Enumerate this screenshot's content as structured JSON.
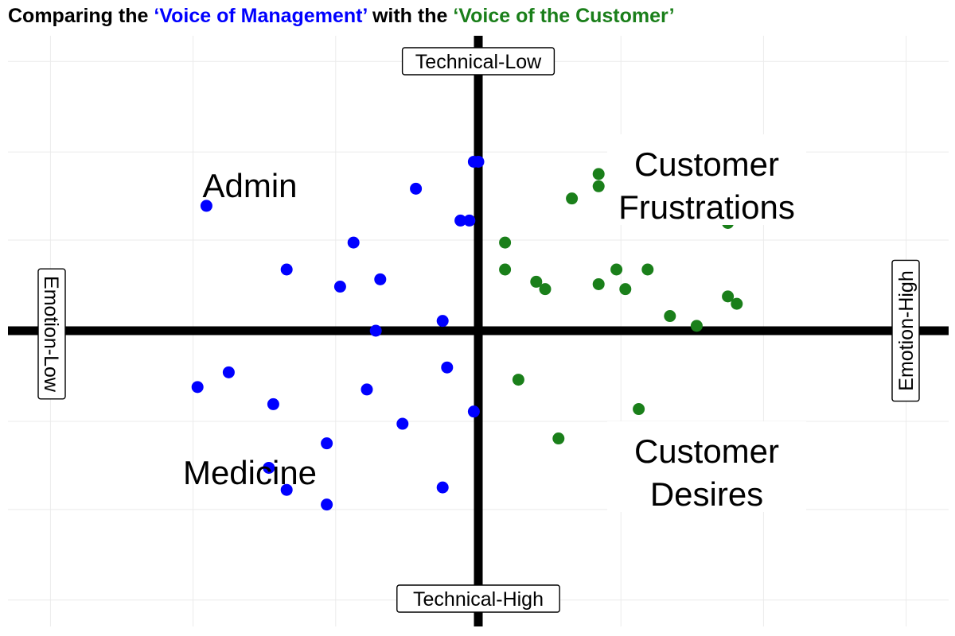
{
  "title": {
    "part1": "Comparing the ",
    "part2": "‘Voice of Management’",
    "part3": " with the ",
    "part4": "‘Voice of the Customer’"
  },
  "colors": {
    "management": "#0000ff",
    "customer": "#1a7f1a",
    "text": "#000000",
    "grid": "#ebebeb",
    "axis": "#000000"
  },
  "chart_data": {
    "type": "scatter",
    "xlim": [
      -1.05,
      1.05
    ],
    "ylim": [
      -1.1,
      1.1
    ],
    "grid": true,
    "axis_labels": {
      "top": "Technical-Low",
      "bottom": "Technical-High",
      "left": "Emotion-Low",
      "right": "Emotion-High"
    },
    "quadrant_labels": [
      {
        "id": "admin",
        "lines": [
          "Admin"
        ]
      },
      {
        "id": "medicine",
        "lines": [
          "Medicine"
        ]
      },
      {
        "id": "frustrations",
        "lines": [
          "Customer",
          "Frustrations"
        ]
      },
      {
        "id": "desires",
        "lines": [
          "Customer",
          "Desires"
        ]
      }
    ],
    "series": [
      {
        "key": "management",
        "color": "#0000ff",
        "points": [
          [
            -0.01,
            0.69
          ],
          [
            0.0,
            0.69
          ],
          [
            -0.14,
            0.58
          ],
          [
            -0.61,
            0.51
          ],
          [
            -0.04,
            0.45
          ],
          [
            -0.02,
            0.45
          ],
          [
            -0.28,
            0.36
          ],
          [
            -0.43,
            0.25
          ],
          [
            -0.22,
            0.21
          ],
          [
            -0.31,
            0.18
          ],
          [
            -0.08,
            0.04
          ],
          [
            -0.23,
            0.0
          ],
          [
            -0.07,
            -0.15
          ],
          [
            -0.56,
            -0.17
          ],
          [
            -0.63,
            -0.23
          ],
          [
            -0.25,
            -0.24
          ],
          [
            -0.46,
            -0.3
          ],
          [
            -0.01,
            -0.33
          ],
          [
            -0.17,
            -0.38
          ],
          [
            -0.34,
            -0.46
          ],
          [
            -0.47,
            -0.56
          ],
          [
            -0.43,
            -0.65
          ],
          [
            -0.08,
            -0.64
          ],
          [
            -0.34,
            -0.71
          ]
        ]
      },
      {
        "key": "customer",
        "color": "#1a7f1a",
        "points": [
          [
            0.27,
            0.64
          ],
          [
            0.27,
            0.59
          ],
          [
            0.55,
            0.61
          ],
          [
            0.21,
            0.54
          ],
          [
            0.43,
            0.54
          ],
          [
            0.61,
            0.53
          ],
          [
            0.33,
            0.46
          ],
          [
            0.56,
            0.44
          ],
          [
            0.06,
            0.36
          ],
          [
            0.06,
            0.25
          ],
          [
            0.13,
            0.2
          ],
          [
            0.15,
            0.17
          ],
          [
            0.27,
            0.19
          ],
          [
            0.31,
            0.25
          ],
          [
            0.33,
            0.17
          ],
          [
            0.38,
            0.25
          ],
          [
            0.56,
            0.14
          ],
          [
            0.58,
            0.11
          ],
          [
            0.43,
            0.06
          ],
          [
            0.49,
            0.02
          ],
          [
            0.09,
            -0.2
          ],
          [
            0.36,
            -0.32
          ],
          [
            0.18,
            -0.44
          ],
          [
            0.42,
            -0.61
          ]
        ]
      }
    ]
  }
}
